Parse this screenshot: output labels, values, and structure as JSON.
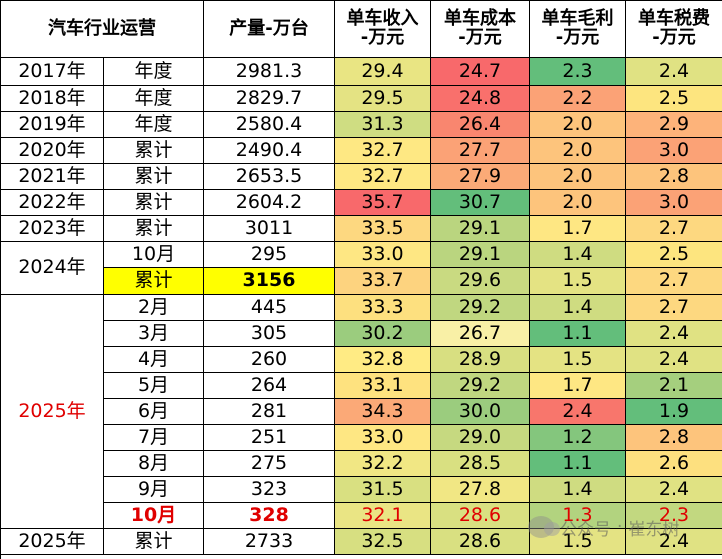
{
  "header": {
    "title": "汽车行业运营",
    "production": "产量-万台",
    "revenue": [
      "单车收入",
      "-万元"
    ],
    "cost": [
      "单车成本",
      "-万元"
    ],
    "profit": [
      "单车毛利",
      "-万元"
    ],
    "tax": [
      "单车税费",
      "-万元"
    ]
  },
  "colors": {
    "green_strong": "#63be7b",
    "red_strong": "#f8696b",
    "yellow": "#ffeb84",
    "highlight": "#ffff00",
    "red_text": "#e00000"
  },
  "rows": [
    {
      "year": "2017年",
      "period": "年度",
      "production": "2981.3",
      "revenue": "29.4",
      "cost": "24.7",
      "profit": "2.3",
      "tax": "2.4"
    },
    {
      "year": "2018年",
      "period": "年度",
      "production": "2829.7",
      "revenue": "29.5",
      "cost": "24.8",
      "profit": "2.2",
      "tax": "2.5"
    },
    {
      "year": "2019年",
      "period": "年度",
      "production": "2580.4",
      "revenue": "31.3",
      "cost": "26.4",
      "profit": "2.0",
      "tax": "2.9"
    },
    {
      "year": "2020年",
      "period": "累计",
      "production": "2490.4",
      "revenue": "32.7",
      "cost": "27.7",
      "profit": "2.0",
      "tax": "3.0"
    },
    {
      "year": "2021年",
      "period": "累计",
      "production": "2653.5",
      "revenue": "32.7",
      "cost": "27.9",
      "profit": "2.0",
      "tax": "2.8"
    },
    {
      "year": "2022年",
      "period": "累计",
      "production": "2604.2",
      "revenue": "35.7",
      "cost": "30.7",
      "profit": "2.0",
      "tax": "3.0"
    },
    {
      "year": "2023年",
      "period": "累计",
      "production": "3011",
      "revenue": "33.5",
      "cost": "29.1",
      "profit": "1.7",
      "tax": "2.7"
    },
    {
      "year": "2024年",
      "period": "10月",
      "production": "295",
      "revenue": "33.0",
      "cost": "29.1",
      "profit": "1.4",
      "tax": "2.5"
    },
    {
      "year": "",
      "period": "累计",
      "production": "3156",
      "revenue": "33.7",
      "cost": "29.6",
      "profit": "1.5",
      "tax": "2.7"
    },
    {
      "year": "2025年",
      "period": "2月",
      "production": "445",
      "revenue": "33.3",
      "cost": "29.2",
      "profit": "1.4",
      "tax": "2.7"
    },
    {
      "year": "",
      "period": "3月",
      "production": "305",
      "revenue": "30.2",
      "cost": "26.7",
      "profit": "1.1",
      "tax": "2.4"
    },
    {
      "year": "",
      "period": "4月",
      "production": "260",
      "revenue": "32.8",
      "cost": "28.9",
      "profit": "1.5",
      "tax": "2.4"
    },
    {
      "year": "",
      "period": "5月",
      "production": "264",
      "revenue": "33.1",
      "cost": "29.2",
      "profit": "1.7",
      "tax": "2.1"
    },
    {
      "year": "",
      "period": "6月",
      "production": "281",
      "revenue": "34.3",
      "cost": "30.0",
      "profit": "2.4",
      "tax": "1.9"
    },
    {
      "year": "",
      "period": "7月",
      "production": "251",
      "revenue": "33.0",
      "cost": "29.0",
      "profit": "1.2",
      "tax": "2.8"
    },
    {
      "year": "",
      "period": "8月",
      "production": "275",
      "revenue": "32.2",
      "cost": "28.5",
      "profit": "1.1",
      "tax": "2.6"
    },
    {
      "year": "",
      "period": "9月",
      "production": "323",
      "revenue": "31.5",
      "cost": "27.8",
      "profit": "1.4",
      "tax": "2.4"
    },
    {
      "year": "",
      "period": "10月",
      "production": "328",
      "revenue": "32.1",
      "cost": "28.6",
      "profit": "1.3",
      "tax": "2.3"
    },
    {
      "year": "2025年",
      "period": "累计",
      "production": "2733",
      "revenue": "32.5",
      "cost": "28.6",
      "profit": "1.5",
      "tax": "2.4"
    }
  ],
  "cell_colors": {
    "revenue": [
      "#e9e583",
      "#e4e383",
      "#cfdd82",
      "#fee883",
      "#fee883",
      "#f8696b",
      "#fdd880",
      "#fee783",
      "#fdd37f",
      "#fde07f",
      "#9bcc7e",
      "#ffeb84",
      "#fee27f",
      "#fba977",
      "#fee783",
      "#f1e784",
      "#d9e081",
      "#eae584",
      "#d7df81"
    ],
    "cost": [
      "#f8696b",
      "#f9706c",
      "#f9866f",
      "#fba276",
      "#fbaa77",
      "#63be7b",
      "#bad57f",
      "#bad57f",
      "#c9da81",
      "#c0d780",
      "#f9f0a6",
      "#d8df81",
      "#c0d780",
      "#9bcc7e",
      "#c6d980",
      "#d9e081",
      "#f1e784",
      "#d9e081",
      "#d9e081"
    ],
    "profit": [
      "#63be7b",
      "#fba276",
      "#fdc47c",
      "#fdc47c",
      "#fdc47c",
      "#fdc47c",
      "#fee783",
      "#cfdc81",
      "#e4e383",
      "#cfdc81",
      "#63be7b",
      "#e4e383",
      "#fee783",
      "#f8766c",
      "#84c67d",
      "#63be7b",
      "#cfdc81",
      "#b2d37f",
      "#e4e383"
    ],
    "tax": [
      "#e0e283",
      "#fde57f",
      "#fdb37a",
      "#fba276",
      "#fdc47c",
      "#fba276",
      "#fdd880",
      "#fde57f",
      "#fdd880",
      "#fdd880",
      "#e0e283",
      "#e0e283",
      "#a5cf7e",
      "#63be7b",
      "#fdc47c",
      "#fde07f",
      "#e0e283",
      "#c2d880",
      "#e0e283"
    ]
  },
  "watermark": {
    "prefix": "公众号",
    "sep": "·",
    "name": "崔东树"
  }
}
